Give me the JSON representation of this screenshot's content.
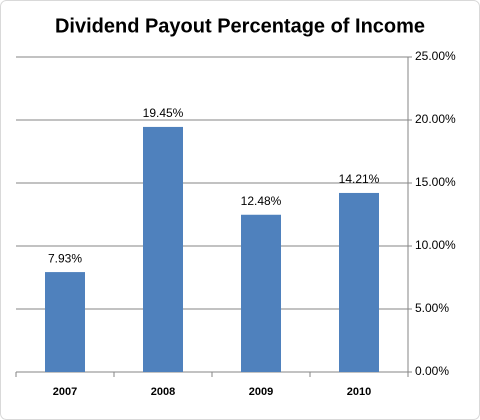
{
  "chart_data": {
    "type": "bar",
    "title": "Dividend Payout Percentage of Income",
    "categories": [
      "2007",
      "2008",
      "2009",
      "2010"
    ],
    "values": [
      7.93,
      19.45,
      12.48,
      14.21
    ],
    "value_labels": [
      "7.93%",
      "19.45%",
      "12.48%",
      "14.21%"
    ],
    "color": "#4f81bd",
    "ylim": [
      0,
      25
    ],
    "yticks": [
      {
        "value": 0,
        "label": "0.00%"
      },
      {
        "value": 5,
        "label": "5.00%"
      },
      {
        "value": 10,
        "label": "10.00%"
      },
      {
        "value": 15,
        "label": "15.00%"
      },
      {
        "value": 20,
        "label": "20.00%"
      },
      {
        "value": 25,
        "label": "25.00%"
      }
    ],
    "grid": true,
    "y_axis_side": "right"
  }
}
